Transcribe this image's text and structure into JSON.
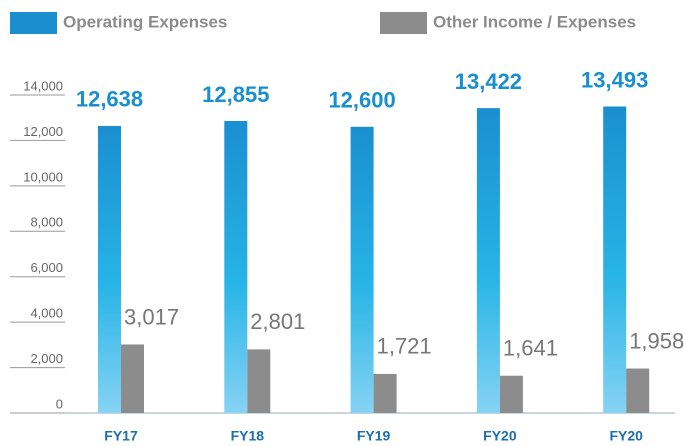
{
  "chart_data": {
    "type": "bar",
    "categories": [
      "FY17",
      "FY18",
      "FY19",
      "FY20",
      "FY20"
    ],
    "series": [
      {
        "name": "Operating Expenses",
        "color": "#1a8fd0",
        "values": [
          12638,
          12855,
          12600,
          13422,
          13493
        ],
        "value_labels": [
          "12,638",
          "12,855",
          "12,600",
          "13,422",
          "13,493"
        ]
      },
      {
        "name": "Other Income / Expenses",
        "color": "#8c8c8c",
        "values": [
          3017,
          2801,
          1721,
          1641,
          1958
        ],
        "value_labels": [
          "3,017",
          "2,801",
          "1,721",
          "1,641",
          "1,958"
        ]
      }
    ],
    "ylim": [
      0,
      14000
    ],
    "yticks": [
      0,
      {
        "value": 2000,
        "label": "2,000"
      },
      {
        "value": 4000,
        "label": "4,000"
      },
      {
        "value": 6000,
        "label": "6,000"
      },
      {
        "value": 8000,
        "label": "8,000"
      },
      {
        "value": 10000,
        "label": "10,000"
      },
      {
        "value": 12000,
        "label": "12,000"
      },
      {
        "value": 14000,
        "label": "14,000"
      }
    ],
    "legend": "top"
  }
}
